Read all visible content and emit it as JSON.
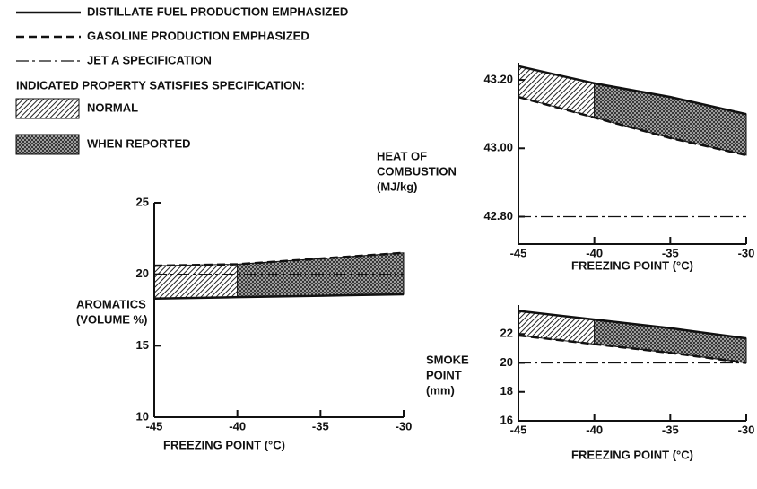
{
  "legend": {
    "lines": [
      {
        "name": "DISTILLATE FUEL PRODUCTION EMPHASIZED",
        "style": "solid"
      },
      {
        "name": "GASOLINE PRODUCTION EMPHASIZED",
        "style": "dashed"
      },
      {
        "name": "JET A SPECIFICATION",
        "style": "dashdot"
      }
    ],
    "heading": "INDICATED PROPERTY SATISFIES SPECIFICATION:",
    "fills": [
      {
        "name": "NORMAL",
        "pattern": "normal"
      },
      {
        "name": "WHEN REPORTED",
        "pattern": "reported"
      }
    ]
  },
  "chart_data": [
    {
      "type": "line",
      "ylabel": [
        "AROMATICS",
        "(VOLUME %)"
      ],
      "xlabel": "FREEZING POINT (°C)",
      "x": [
        -45,
        -40,
        -35,
        -30
      ],
      "xlim": [
        -45,
        -30
      ],
      "xticks": [
        -45,
        -40,
        -35,
        -30
      ],
      "ylim": [
        10,
        25
      ],
      "yticks": [
        10,
        15,
        20,
        25
      ],
      "series": [
        {
          "style": "solid",
          "values": [
            18.3,
            18.4,
            18.5,
            18.6
          ]
        },
        {
          "style": "dashed",
          "values": [
            20.6,
            20.7,
            21.1,
            21.5
          ]
        },
        {
          "style": "dashdot",
          "values": [
            20,
            20,
            20,
            20
          ]
        }
      ],
      "shaded_regions": [
        {
          "x": [
            -45,
            -40
          ],
          "pattern": "normal"
        },
        {
          "x": [
            -40,
            -30
          ],
          "pattern": "reported"
        }
      ]
    },
    {
      "type": "line",
      "ylabel": [
        "HEAT OF",
        "COMBUSTION",
        "(MJ/kg)"
      ],
      "xlabel": "FREEZING POINT (°C)",
      "x": [
        -45,
        -40,
        -35,
        -30
      ],
      "xlim": [
        -45,
        -30
      ],
      "xticks": [
        -45,
        -40,
        -35,
        -30
      ],
      "ylim": [
        42.72,
        43.25
      ],
      "yticks": [
        {
          "value": 42.8,
          "label": "42.80"
        },
        {
          "value": 43,
          "label": "43.00"
        },
        {
          "value": 43.2,
          "label": "43.20"
        }
      ],
      "series": [
        {
          "style": "solid",
          "values": [
            43.24,
            43.19,
            43.15,
            43.1
          ]
        },
        {
          "style": "dashed",
          "values": [
            43.15,
            43.09,
            43.03,
            42.98
          ]
        },
        {
          "style": "dashdot",
          "values": [
            42.8,
            42.8,
            42.8,
            42.8
          ]
        }
      ],
      "shaded_regions": [
        {
          "x": [
            -45,
            -40
          ],
          "pattern": "normal"
        },
        {
          "x": [
            -40,
            -30
          ],
          "pattern": "reported"
        }
      ]
    },
    {
      "type": "line",
      "ylabel": [
        "SMOKE",
        "POINT",
        "(mm)"
      ],
      "xlabel": "FREEZING POINT (°C)",
      "x": [
        -45,
        -40,
        -35,
        -30
      ],
      "xlim": [
        -45,
        -30
      ],
      "xticks": [
        -45,
        -40,
        -35,
        -30
      ],
      "ylim": [
        16,
        24
      ],
      "yticks": [
        16,
        18,
        20,
        22
      ],
      "series": [
        {
          "style": "solid",
          "values": [
            23.6,
            23.0,
            22.4,
            21.7
          ]
        },
        {
          "style": "dashed",
          "values": [
            21.9,
            21.3,
            20.7,
            20.0
          ]
        },
        {
          "style": "dashdot",
          "values": [
            20,
            20,
            20,
            20
          ]
        }
      ],
      "shaded_regions": [
        {
          "x": [
            -45,
            -40
          ],
          "pattern": "normal"
        },
        {
          "x": [
            -40,
            -30
          ],
          "pattern": "reported"
        }
      ]
    }
  ]
}
